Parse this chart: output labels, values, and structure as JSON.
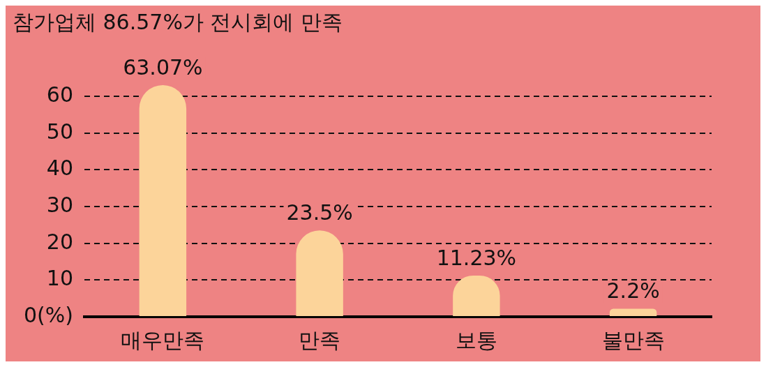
{
  "chart_data": {
    "type": "bar",
    "title": "참가업체 86.57%가 전시회에 만족",
    "categories": [
      "매우만족",
      "만족",
      "보통",
      "불만족"
    ],
    "values": [
      63.07,
      23.5,
      11.23,
      2.2
    ],
    "value_labels": [
      "63.07%",
      "23.5%",
      "11.23%",
      "2.2%"
    ],
    "color": "#fcd49a",
    "ylim": [
      0,
      63.07
    ],
    "yticks": [
      {
        "value": 0,
        "label": "0(%)"
      },
      10,
      20,
      30,
      40,
      50,
      60
    ],
    "grid": "y",
    "legend": false
  }
}
